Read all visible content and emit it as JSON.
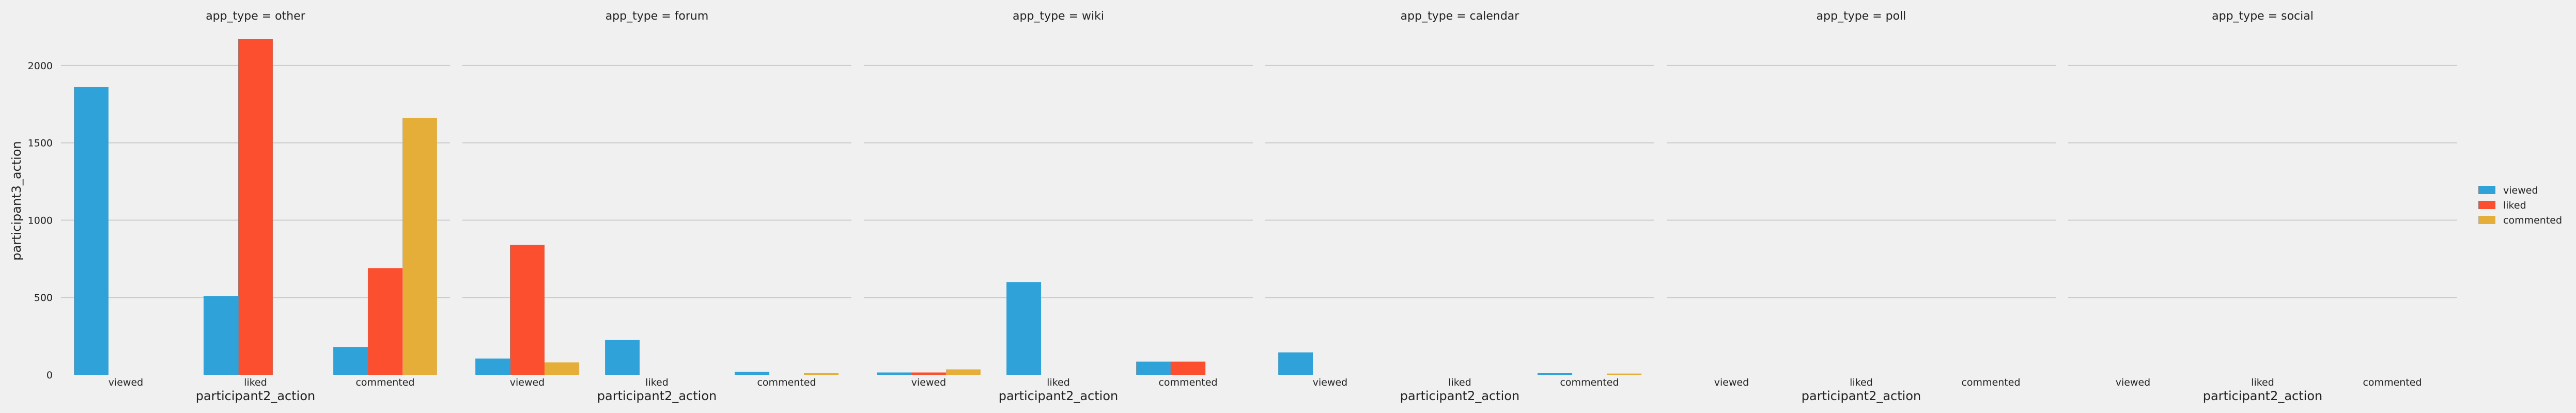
{
  "chart_data": {
    "type": "bar",
    "facet_prefix": "app_type = ",
    "facets": [
      "other",
      "forum",
      "wiki",
      "calendar",
      "poll",
      "social"
    ],
    "categories": [
      "viewed",
      "liked",
      "commented"
    ],
    "xlabel": "participant2_action",
    "ylabel": "participant3_action",
    "ylim": [
      0,
      2250
    ],
    "yticks": [
      0,
      500,
      1000,
      1500,
      2000
    ],
    "grid": true,
    "legend_position": "right",
    "series": [
      {
        "name": "viewed",
        "color": "#30a2da",
        "values": [
          [
            1860,
            510,
            180
          ],
          [
            105,
            225,
            20
          ],
          [
            15,
            600,
            85
          ],
          [
            145,
            0,
            10
          ],
          [
            0,
            0,
            0
          ],
          [
            0,
            0,
            0
          ]
        ]
      },
      {
        "name": "liked",
        "color": "#fc4f30",
        "values": [
          [
            0,
            2170,
            690
          ],
          [
            840,
            0,
            0
          ],
          [
            15,
            0,
            85
          ],
          [
            0,
            0,
            0
          ],
          [
            0,
            0,
            0
          ],
          [
            0,
            0,
            0
          ]
        ]
      },
      {
        "name": "commented",
        "color": "#e5ae38",
        "values": [
          [
            0,
            0,
            1660
          ],
          [
            80,
            0,
            10
          ],
          [
            35,
            0,
            0
          ],
          [
            0,
            0,
            8
          ],
          [
            0,
            0,
            0
          ],
          [
            0,
            0,
            0
          ]
        ]
      }
    ]
  }
}
